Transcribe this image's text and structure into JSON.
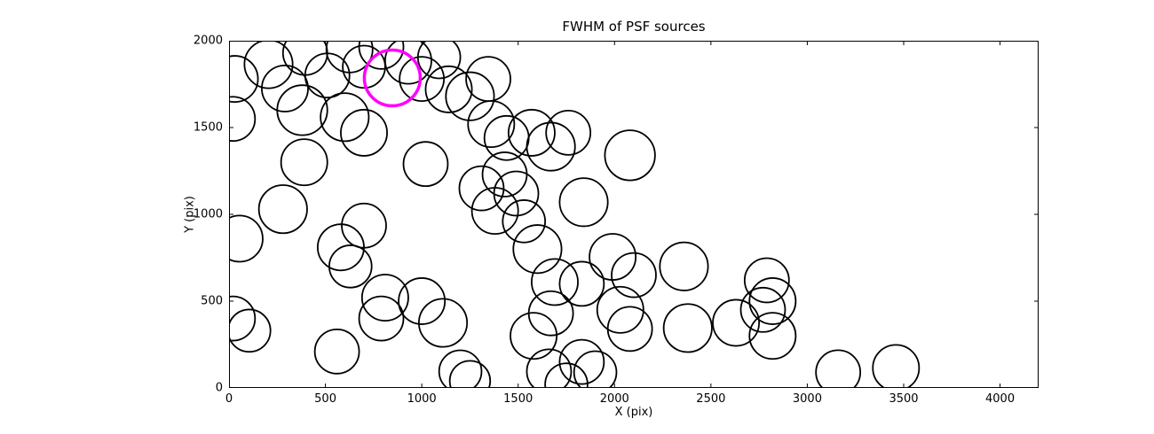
{
  "figure": {
    "background": "#ffffff"
  },
  "chart_data": {
    "type": "scatter",
    "title": "FWHM of PSF sources",
    "xlabel": "X (pix)",
    "ylabel": "Y (pix)",
    "xlim": [
      0,
      4200
    ],
    "ylim": [
      0,
      2000
    ],
    "xticks": [
      0,
      500,
      1000,
      1500,
      2000,
      2500,
      3000,
      3500,
      4000
    ],
    "yticks": [
      0,
      500,
      1000,
      1500,
      2000
    ],
    "grid": false,
    "legend_position": "none",
    "marker_style": "open-circle",
    "circle_color": "#000000",
    "circle_stroke_px": 1.8,
    "highlight_color": "#ff00ff",
    "highlight_stroke_px": 3.5,
    "points_format": "[x, y, r] in data units",
    "points": [
      [
        30,
        1780,
        120
      ],
      [
        20,
        1550,
        115
      ],
      [
        205,
        1865,
        125
      ],
      [
        290,
        1725,
        120
      ],
      [
        395,
        1930,
        115
      ],
      [
        380,
        1600,
        130
      ],
      [
        510,
        1800,
        115
      ],
      [
        625,
        1950,
        120
      ],
      [
        700,
        1850,
        110
      ],
      [
        790,
        1965,
        115
      ],
      [
        930,
        1885,
        120
      ],
      [
        1000,
        1780,
        115
      ],
      [
        1090,
        1905,
        110
      ],
      [
        1140,
        1720,
        120
      ],
      [
        1250,
        1680,
        125
      ],
      [
        1345,
        1780,
        115
      ],
      [
        600,
        1560,
        125
      ],
      [
        700,
        1470,
        120
      ],
      [
        1360,
        1520,
        120
      ],
      [
        1440,
        1440,
        115
      ],
      [
        1570,
        1470,
        120
      ],
      [
        1670,
        1390,
        125
      ],
      [
        1760,
        1470,
        115
      ],
      [
        390,
        1300,
        120
      ],
      [
        1020,
        1290,
        115
      ],
      [
        2080,
        1340,
        130
      ],
      [
        280,
        1030,
        125
      ],
      [
        1310,
        1150,
        115
      ],
      [
        1380,
        1020,
        120
      ],
      [
        1430,
        1230,
        115
      ],
      [
        1490,
        1120,
        115
      ],
      [
        1530,
        960,
        110
      ],
      [
        1840,
        1070,
        125
      ],
      [
        55,
        860,
        120
      ],
      [
        580,
        810,
        120
      ],
      [
        700,
        935,
        115
      ],
      [
        630,
        700,
        110
      ],
      [
        1600,
        800,
        125
      ],
      [
        1690,
        610,
        120
      ],
      [
        1830,
        600,
        115
      ],
      [
        1990,
        755,
        120
      ],
      [
        2100,
        650,
        115
      ],
      [
        2360,
        700,
        125
      ],
      [
        2790,
        620,
        115
      ],
      [
        2820,
        500,
        120
      ],
      [
        20,
        400,
        115
      ],
      [
        105,
        330,
        110
      ],
      [
        810,
        520,
        120
      ],
      [
        790,
        400,
        115
      ],
      [
        1000,
        500,
        120
      ],
      [
        1110,
        375,
        125
      ],
      [
        1580,
        300,
        120
      ],
      [
        1670,
        430,
        115
      ],
      [
        2030,
        450,
        120
      ],
      [
        2080,
        340,
        115
      ],
      [
        2380,
        345,
        125
      ],
      [
        2630,
        375,
        120
      ],
      [
        2770,
        450,
        115
      ],
      [
        2820,
        300,
        120
      ],
      [
        560,
        210,
        115
      ],
      [
        1200,
        95,
        110
      ],
      [
        1250,
        40,
        105
      ],
      [
        1660,
        95,
        115
      ],
      [
        1750,
        20,
        110
      ],
      [
        1830,
        150,
        115
      ],
      [
        1900,
        90,
        110
      ],
      [
        3160,
        90,
        115
      ],
      [
        3460,
        115,
        120
      ]
    ],
    "highlight_point": [
      847,
      1786,
      145
    ]
  }
}
